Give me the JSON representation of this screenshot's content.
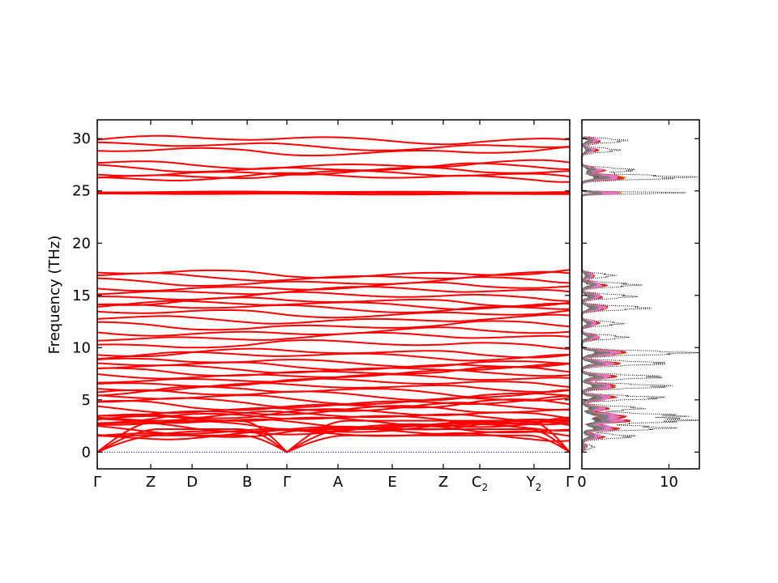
{
  "chart_data": [
    {
      "type": "line",
      "ylabel": "Frequency (THz)",
      "xlabel": "",
      "title": "",
      "ylim": [
        -1.6,
        31.8
      ],
      "y_ticks": [
        0,
        5,
        10,
        15,
        20,
        25,
        30
      ],
      "x_ticks": [
        {
          "label": "Γ",
          "sub": ""
        },
        {
          "label": "Z",
          "sub": ""
        },
        {
          "label": "D",
          "sub": ""
        },
        {
          "label": "B",
          "sub": ""
        },
        {
          "label": "Γ",
          "sub": ""
        },
        {
          "label": "A",
          "sub": ""
        },
        {
          "label": "E",
          "sub": ""
        },
        {
          "label": "Z",
          "sub": ""
        },
        {
          "label": "C",
          "sub": "2"
        },
        {
          "label": "Y",
          "sub": "2"
        },
        {
          "label": "Γ",
          "sub": ""
        }
      ],
      "grid": false,
      "colors": {
        "bands": "#ff0000",
        "zero_line": "#0000ff"
      },
      "bands_start_THz": [
        29.9,
        29.3,
        28.8,
        27.5,
        27.2,
        26.8,
        26.5,
        26.3,
        24.9,
        24.8,
        24.7,
        17.1,
        16.8,
        16.3,
        15.8,
        15.4,
        14.9,
        14.4,
        14.1,
        13.8,
        13.3,
        12.7,
        12.1,
        11.5,
        11.0,
        10.3,
        9.5,
        9.2,
        8.6,
        8.3,
        8.0,
        7.7,
        7.4,
        7.0,
        6.6,
        6.2,
        5.8,
        5.5,
        5.1,
        4.8,
        4.5,
        4.2,
        3.9,
        3.6,
        3.4,
        3.2,
        3.0,
        2.8,
        2.6,
        2.4,
        2.2,
        2.0,
        1.8,
        1.6
      ]
    },
    {
      "type": "line",
      "xlim": [
        0,
        13.5
      ],
      "x_ticks": [
        0,
        10
      ],
      "ylim": [
        -1.6,
        31.8
      ],
      "colors": {
        "total": "#000000",
        "projections": [
          "#1f77b4",
          "#ff7f0e",
          "#2ca02c",
          "#d62728",
          "#9467bd",
          "#8c564b",
          "#e377c2",
          "#7f7f7f"
        ]
      },
      "peaks": [
        {
          "f": 0.5,
          "v": 1.5
        },
        {
          "f": 1.5,
          "v": 6.5
        },
        {
          "f": 2.3,
          "v": 11.0
        },
        {
          "f": 3.0,
          "v": 13.0
        },
        {
          "f": 3.5,
          "v": 12.0
        },
        {
          "f": 4.2,
          "v": 7.5
        },
        {
          "f": 5.2,
          "v": 10.0
        },
        {
          "f": 6.3,
          "v": 11.0
        },
        {
          "f": 7.2,
          "v": 10.0
        },
        {
          "f": 8.5,
          "v": 10.5
        },
        {
          "f": 9.5,
          "v": 13.5
        },
        {
          "f": 11.0,
          "v": 5.5
        },
        {
          "f": 12.3,
          "v": 5.0
        },
        {
          "f": 13.8,
          "v": 8.2
        },
        {
          "f": 14.9,
          "v": 6.5
        },
        {
          "f": 16.0,
          "v": 7.0
        },
        {
          "f": 16.9,
          "v": 4.0
        },
        {
          "f": 24.8,
          "v": 13.5
        },
        {
          "f": 26.3,
          "v": 13.5
        },
        {
          "f": 27.0,
          "v": 6.5
        },
        {
          "f": 28.9,
          "v": 4.5
        },
        {
          "f": 29.8,
          "v": 5.5
        }
      ]
    }
  ]
}
